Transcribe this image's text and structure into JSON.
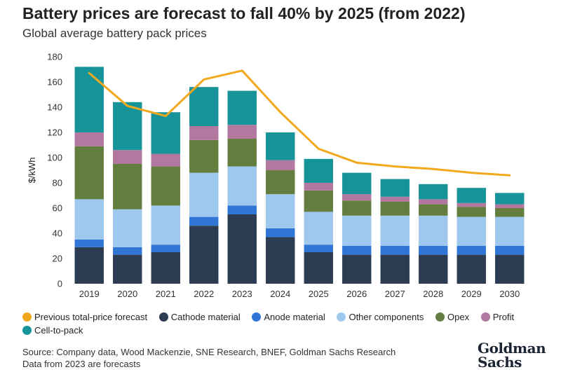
{
  "header": {
    "title": "Battery prices are forecast to fall 40% by 2025 (from 2022)",
    "subtitle": "Global average battery pack prices"
  },
  "colors": {
    "forecast_line": "#f2a81d",
    "cathode": "#2b3c53",
    "anode": "#3076d6",
    "other": "#9fc8ef",
    "opex": "#647e3f",
    "profit": "#b2789f",
    "cell_to_pack": "#17939a"
  },
  "legend": [
    {
      "label": "Previous total-price forecast",
      "color": "#f2a81d"
    },
    {
      "label": "Cathode material",
      "color": "#2b3c53"
    },
    {
      "label": "Anode material",
      "color": "#3076d6"
    },
    {
      "label": "Other components",
      "color": "#9fc8ef"
    },
    {
      "label": "Opex",
      "color": "#647e3f"
    },
    {
      "label": "Profit",
      "color": "#b2789f"
    },
    {
      "label": "Cell-to-pack",
      "color": "#17939a"
    }
  ],
  "chart_data": {
    "type": "bar",
    "stacked": true,
    "title": "Battery prices are forecast to fall 40% by 2025 (from 2022)",
    "subtitle": "Global average battery pack prices",
    "ylabel": "$/kWh",
    "xlabel": "",
    "ylim": [
      0,
      180
    ],
    "yticks": [
      0,
      20,
      40,
      60,
      80,
      100,
      120,
      140,
      160,
      180
    ],
    "grid": false,
    "legend_position": "bottom",
    "categories": [
      "2019",
      "2020",
      "2021",
      "2022",
      "2023",
      "2024",
      "2025",
      "2026",
      "2027",
      "2028",
      "2029",
      "2030"
    ],
    "series": [
      {
        "name": "Cathode material",
        "color": "#2b3c53",
        "values": [
          29,
          23,
          25,
          46,
          55,
          37,
          25,
          23,
          23,
          23,
          23,
          23
        ]
      },
      {
        "name": "Anode material",
        "color": "#3076d6",
        "values": [
          6,
          6,
          6,
          7,
          7,
          7,
          6,
          7,
          7,
          7,
          7,
          7
        ]
      },
      {
        "name": "Other components",
        "color": "#9fc8ef",
        "values": [
          32,
          30,
          31,
          35,
          31,
          27,
          26,
          24,
          24,
          24,
          23,
          23
        ]
      },
      {
        "name": "Opex",
        "color": "#647e3f",
        "values": [
          42,
          36,
          31,
          26,
          22,
          19,
          17,
          12,
          11,
          9,
          8,
          7
        ]
      },
      {
        "name": "Profit",
        "color": "#b2789f",
        "values": [
          11,
          11,
          10,
          11,
          11,
          8,
          6,
          5,
          4,
          4,
          3,
          3
        ]
      },
      {
        "name": "Cell-to-pack",
        "color": "#17939a",
        "values": [
          52,
          38,
          33,
          31,
          27,
          22,
          19,
          17,
          14,
          12,
          12,
          9
        ]
      }
    ],
    "line_series": {
      "name": "Previous total-price forecast",
      "color": "#f2a81d",
      "values": [
        167,
        141,
        133,
        162,
        169,
        136,
        107,
        96,
        93,
        91,
        88,
        86
      ]
    }
  },
  "footer": {
    "source": "Source: Company data, Wood Mackenzie, SNE Research, BNEF, Goldman Sachs Research",
    "note": "Data from 2023 are forecasts",
    "logo_line1": "Goldman",
    "logo_line2": "Sachs"
  }
}
